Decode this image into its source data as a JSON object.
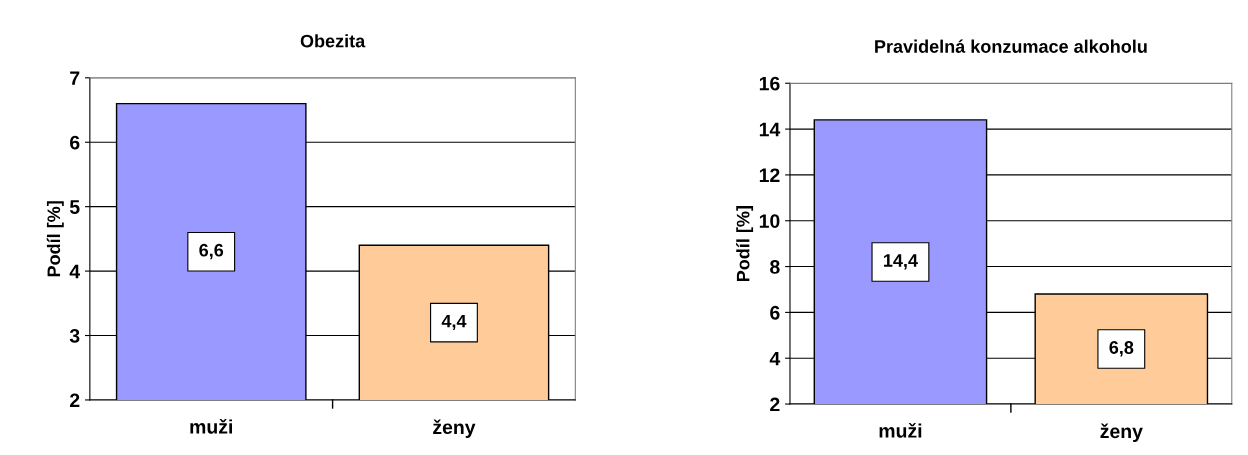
{
  "chart_data": [
    {
      "type": "bar",
      "title": "Obezita",
      "ylabel": "Podíl [%]",
      "categories": [
        "muži",
        "ženy"
      ],
      "values": [
        6.6,
        4.4
      ],
      "colors": [
        "#9999ff",
        "#ffcc99"
      ],
      "ylim": [
        2,
        7
      ],
      "yticks": [
        2,
        3,
        4,
        5,
        6,
        7
      ],
      "grid": "y",
      "data_labels": true,
      "value_labels": [
        "6,6",
        "4,4"
      ]
    },
    {
      "type": "bar",
      "title": "Pravidelná konzumace alkoholu",
      "ylabel": "Podíl [%]",
      "categories": [
        "muži",
        "ženy"
      ],
      "values": [
        14.4,
        6.8
      ],
      "colors": [
        "#9999ff",
        "#ffcc99"
      ],
      "ylim": [
        2,
        16
      ],
      "yticks": [
        2,
        4,
        6,
        8,
        10,
        12,
        14,
        16
      ],
      "grid": "y",
      "data_labels": true,
      "value_labels": [
        "14,4",
        "6,8"
      ]
    }
  ]
}
